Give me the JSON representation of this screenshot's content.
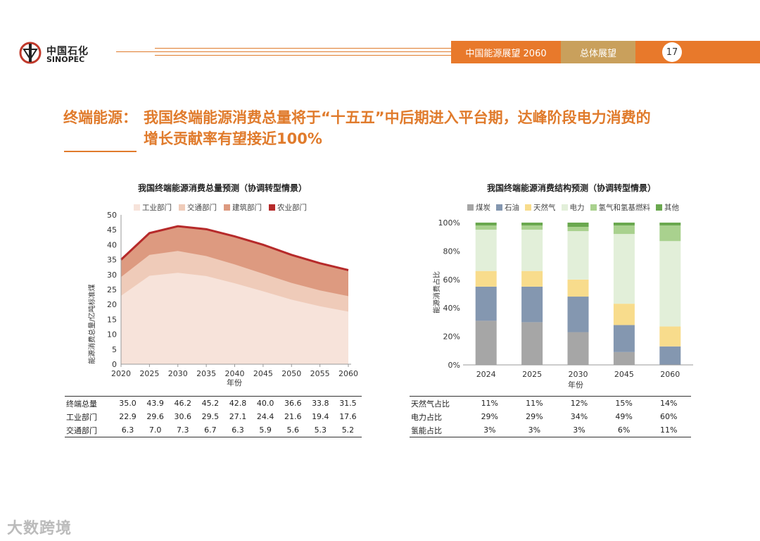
{
  "header": {
    "logo_cn": "中国石化",
    "logo_en": "SINOPEC",
    "report": "中国能源展望 2060",
    "section": "总体展望",
    "page": "17"
  },
  "title": {
    "label": "终端能源：",
    "line1": "我国终端能源消费总量将于“十五五”中后期进入平台期，达峰阶段电力消费的",
    "line2": "增长贡献率有望接近100%"
  },
  "left_chart": {
    "chart_data": {
      "type": "area",
      "title": "我国终端能源消费总量预测（协调转型情景）",
      "ylabel": "能源消费总量/亿吨标准煤",
      "xlabel": "年份",
      "ylim": [
        0,
        50
      ],
      "yticks": [
        "0",
        "5",
        "10",
        "15",
        "20",
        "25",
        "30",
        "35",
        "40",
        "45",
        "50"
      ],
      "x": [
        2020,
        2025,
        2030,
        2035,
        2040,
        2045,
        2050,
        2055,
        2060
      ],
      "xticks": [
        "2020",
        "2025",
        "2030",
        "2035",
        "2040",
        "2045",
        "2050",
        "2055",
        "2060"
      ],
      "stack_top": [
        35.0,
        43.9,
        46.2,
        45.2,
        42.8,
        40.0,
        36.6,
        33.8,
        31.5
      ],
      "series": [
        {
          "name": "工业部门",
          "color": "#f7e3da",
          "values": [
            22.9,
            29.6,
            30.6,
            29.5,
            27.1,
            24.4,
            21.6,
            19.4,
            17.6
          ]
        },
        {
          "name": "交通部门",
          "color": "#efcbb9",
          "values": [
            6.3,
            7.0,
            7.3,
            6.7,
            6.3,
            5.9,
            5.6,
            5.3,
            5.2
          ]
        },
        {
          "name": "建筑部门",
          "color": "#dd9a80",
          "values": [
            5.6,
            7.0,
            8.0,
            8.7,
            9.1,
            9.4,
            9.2,
            8.9,
            8.5
          ]
        },
        {
          "name": "农业部门",
          "color": "#b62a2a",
          "values": [
            0.2,
            0.3,
            0.3,
            0.3,
            0.3,
            0.3,
            0.2,
            0.2,
            0.2
          ]
        }
      ]
    },
    "table": {
      "rows": [
        {
          "label": "终端总量",
          "values": [
            "35.0",
            "43.9",
            "46.2",
            "45.2",
            "42.8",
            "40.0",
            "36.6",
            "33.8",
            "31.5"
          ]
        },
        {
          "label": "工业部门",
          "values": [
            "22.9",
            "29.6",
            "30.6",
            "29.5",
            "27.1",
            "24.4",
            "21.6",
            "19.4",
            "17.6"
          ]
        },
        {
          "label": "交通部门",
          "values": [
            "6.3",
            "7.0",
            "7.3",
            "6.7",
            "6.3",
            "5.9",
            "5.6",
            "5.3",
            "5.2"
          ]
        }
      ]
    }
  },
  "right_chart": {
    "chart_data": {
      "type": "bar",
      "stacked": true,
      "title": "我国终端能源消费结构预测（协调转型情景）",
      "ylabel": "能源消费占比",
      "xlabel": "年份",
      "ylim": [
        0,
        100
      ],
      "yticks": [
        "0%",
        "20%",
        "40%",
        "60%",
        "80%",
        "100%"
      ],
      "categories": [
        "2024",
        "2025",
        "2030",
        "2045",
        "2060"
      ],
      "series": [
        {
          "name": "煤炭",
          "color": "#a6a6a6",
          "values": [
            31,
            30,
            23,
            9,
            0
          ]
        },
        {
          "name": "石油",
          "color": "#8497b0",
          "values": [
            24,
            25,
            25,
            19,
            13
          ]
        },
        {
          "name": "天然气",
          "color": "#f8dc8c",
          "values": [
            11,
            11,
            12,
            15,
            14
          ]
        },
        {
          "name": "电力",
          "color": "#e2efd9",
          "values": [
            29,
            29,
            34,
            49,
            60
          ]
        },
        {
          "name": "氢气和氢基燃料",
          "color": "#a9d18e",
          "values": [
            3,
            3,
            3,
            6,
            11
          ]
        },
        {
          "name": "其他",
          "color": "#6aa84f",
          "values": [
            2,
            2,
            3,
            2,
            2
          ]
        }
      ]
    },
    "table": {
      "rows": [
        {
          "label": "天然气占比",
          "values": [
            "11%",
            "11%",
            "12%",
            "15%",
            "14%"
          ]
        },
        {
          "label": "电力占比",
          "values": [
            "29%",
            "29%",
            "34%",
            "49%",
            "60%"
          ]
        },
        {
          "label": "氢能占比",
          "values": [
            "3%",
            "3%",
            "3%",
            "6%",
            "11%"
          ]
        }
      ]
    }
  },
  "watermark": "大数跨境"
}
